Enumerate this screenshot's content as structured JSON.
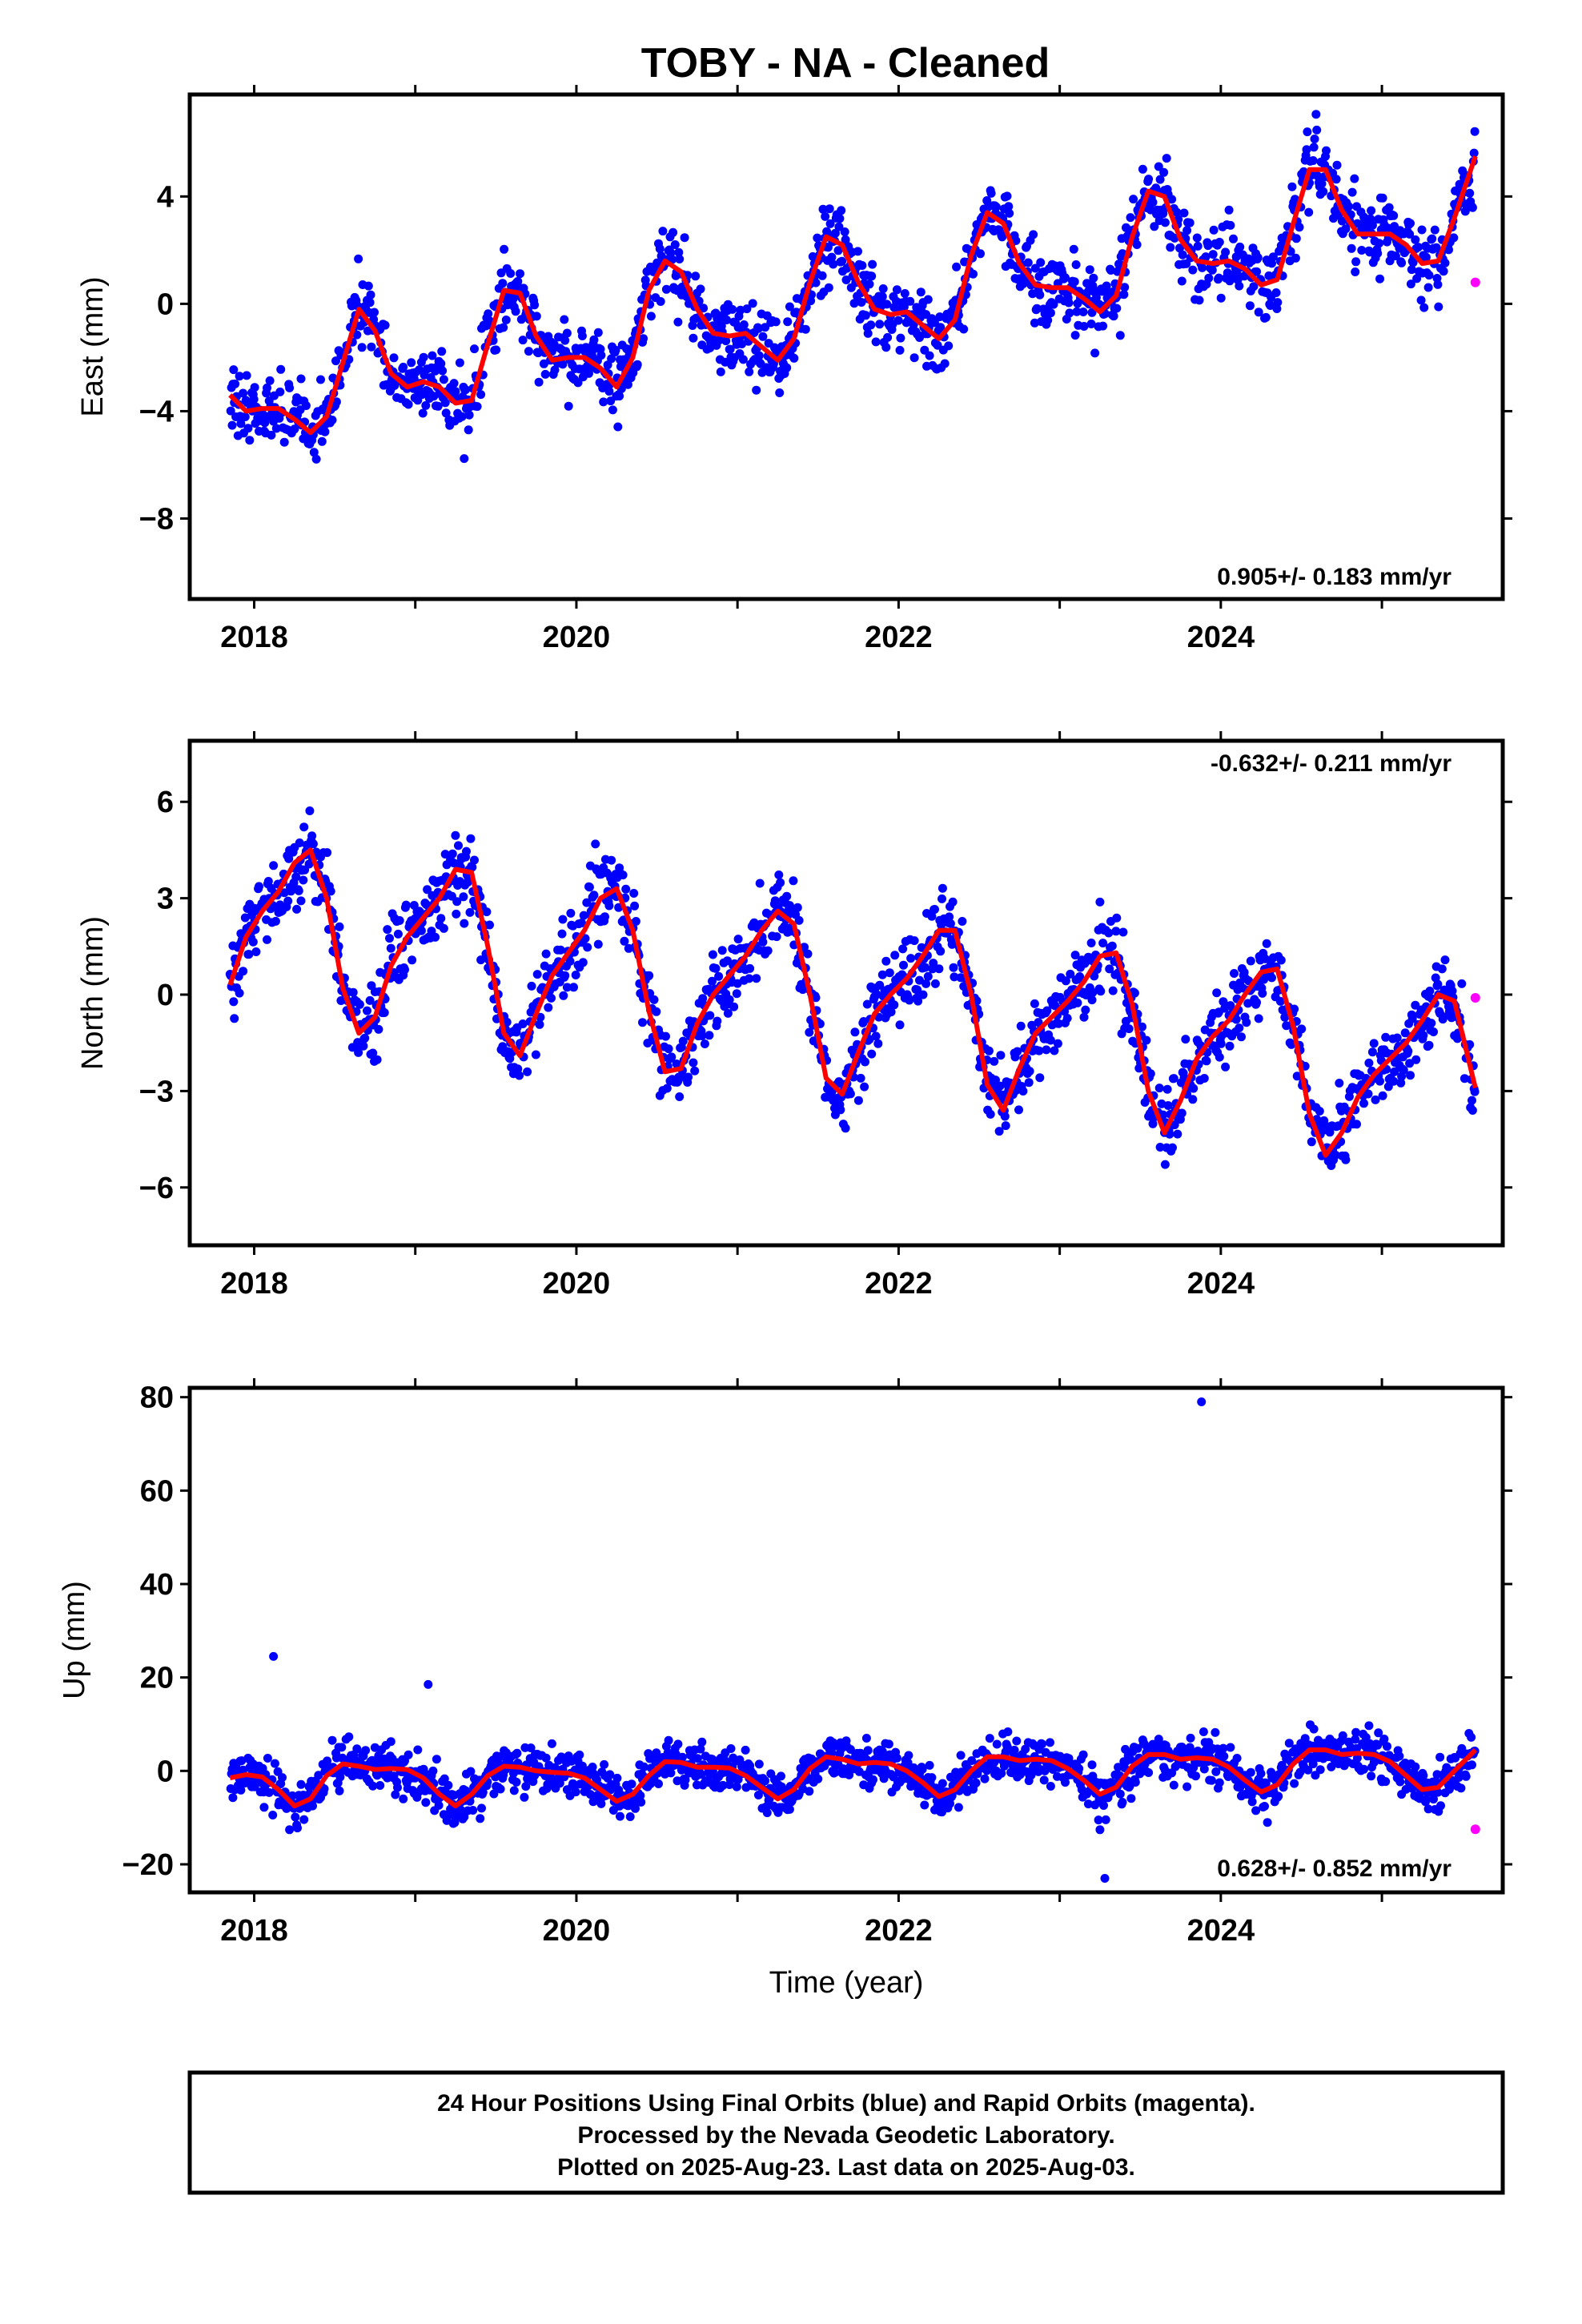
{
  "title": "TOBY  - NA - Cleaned",
  "colors": {
    "final": "#0000ff",
    "rapid": "#ff00ff",
    "model": "#ff0000"
  },
  "chart_data": [
    {
      "type": "scatter",
      "component": "east",
      "ylabel": "East (mm)",
      "xlabel": "",
      "xlim": [
        2017.6,
        2025.75
      ],
      "ylim": [
        -11,
        7.8
      ],
      "yticks": [
        -8,
        -4,
        0,
        4
      ],
      "ytick_labels": [
        "−8",
        "−4",
        "0",
        "4"
      ],
      "xticks": [
        2018,
        2020,
        2022,
        2024
      ],
      "xtick_labels": [
        "2018",
        "2020",
        "2022",
        "2024"
      ],
      "rate_label": "0.905+/- 0.183 mm/yr",
      "rate_position": "bottom-right",
      "model": {
        "x": [
          2017.85,
          2017.95,
          2018.05,
          2018.15,
          2018.25,
          2018.35,
          2018.45,
          2018.55,
          2018.65,
          2018.75,
          2018.85,
          2018.95,
          2019.05,
          2019.15,
          2019.25,
          2019.35,
          2019.45,
          2019.55,
          2019.65,
          2019.75,
          2019.85,
          2019.95,
          2020.05,
          2020.15,
          2020.25,
          2020.35,
          2020.45,
          2020.55,
          2020.65,
          2020.75,
          2020.85,
          2020.95,
          2021.05,
          2021.15,
          2021.25,
          2021.35,
          2021.45,
          2021.55,
          2021.65,
          2021.75,
          2021.85,
          2021.95,
          2022.05,
          2022.15,
          2022.25,
          2022.35,
          2022.45,
          2022.55,
          2022.65,
          2022.75,
          2022.85,
          2022.95,
          2023.05,
          2023.15,
          2023.25,
          2023.35,
          2023.45,
          2023.55,
          2023.65,
          2023.75,
          2023.85,
          2023.95,
          2024.05,
          2024.15,
          2024.25,
          2024.35,
          2024.45,
          2024.55,
          2024.65,
          2024.75,
          2024.85,
          2024.95,
          2025.05,
          2025.15,
          2025.25,
          2025.35,
          2025.45,
          2025.58
        ],
        "y": [
          -3.4,
          -4.0,
          -3.9,
          -3.9,
          -4.3,
          -4.8,
          -4.2,
          -2.2,
          -0.2,
          -1.0,
          -2.6,
          -3.1,
          -2.9,
          -3.1,
          -3.7,
          -3.6,
          -1.5,
          0.5,
          0.4,
          -1.2,
          -2.1,
          -2.0,
          -2.0,
          -2.4,
          -3.1,
          -2.0,
          0.5,
          1.6,
          1.2,
          -0.2,
          -1.1,
          -1.2,
          -1.1,
          -1.6,
          -2.1,
          -1.3,
          0.8,
          2.5,
          2.2,
          0.8,
          -0.2,
          -0.4,
          -0.3,
          -0.8,
          -1.3,
          -0.6,
          1.8,
          3.4,
          3.0,
          1.5,
          0.7,
          0.6,
          0.6,
          0.2,
          -0.3,
          0.3,
          2.5,
          4.2,
          4.0,
          2.4,
          1.6,
          1.5,
          1.6,
          1.3,
          0.7,
          0.9,
          3.0,
          5.0,
          5.0,
          3.5,
          2.6,
          2.6,
          2.6,
          2.2,
          1.5,
          1.6,
          3.2,
          5.5
        ]
      },
      "rapid": {
        "x": [
          2025.58
        ],
        "y": [
          0.8
        ]
      }
    },
    {
      "type": "scatter",
      "component": "north",
      "ylabel": "North (mm)",
      "xlabel": "",
      "xlim": [
        2017.6,
        2025.75
      ],
      "ylim": [
        -7.8,
        7.9
      ],
      "yticks": [
        -6,
        -3,
        0,
        3,
        6
      ],
      "ytick_labels": [
        "−6",
        "−3",
        "0",
        "3",
        "6"
      ],
      "xticks": [
        2018,
        2020,
        2022,
        2024
      ],
      "xtick_labels": [
        "2018",
        "2020",
        "2022",
        "2024"
      ],
      "rate_label": "-0.632+/- 0.211 mm/yr",
      "rate_position": "top-right",
      "model": {
        "x": [
          2017.85,
          2017.95,
          2018.05,
          2018.15,
          2018.25,
          2018.35,
          2018.45,
          2018.55,
          2018.65,
          2018.75,
          2018.85,
          2018.95,
          2019.05,
          2019.15,
          2019.25,
          2019.35,
          2019.45,
          2019.55,
          2019.65,
          2019.75,
          2019.85,
          2019.95,
          2020.05,
          2020.15,
          2020.25,
          2020.35,
          2020.45,
          2020.55,
          2020.65,
          2020.75,
          2020.85,
          2020.95,
          2021.05,
          2021.15,
          2021.25,
          2021.35,
          2021.45,
          2021.55,
          2021.65,
          2021.75,
          2021.85,
          2021.95,
          2022.05,
          2022.15,
          2022.25,
          2022.35,
          2022.45,
          2022.55,
          2022.65,
          2022.75,
          2022.85,
          2022.95,
          2023.05,
          2023.15,
          2023.25,
          2023.35,
          2023.45,
          2023.55,
          2023.65,
          2023.75,
          2023.85,
          2023.95,
          2024.05,
          2024.15,
          2024.25,
          2024.35,
          2024.45,
          2024.55,
          2024.65,
          2024.75,
          2024.85,
          2024.95,
          2025.05,
          2025.15,
          2025.25,
          2025.35,
          2025.45,
          2025.58
        ],
        "y": [
          0.3,
          1.8,
          2.6,
          3.2,
          4.1,
          4.5,
          3.0,
          0.2,
          -1.2,
          -0.7,
          0.9,
          1.8,
          2.4,
          3.0,
          3.9,
          3.8,
          1.5,
          -1.2,
          -1.9,
          -0.6,
          0.6,
          1.3,
          2.0,
          3.0,
          3.3,
          2.0,
          -0.5,
          -2.4,
          -2.3,
          -0.9,
          0.0,
          0.6,
          1.2,
          2.0,
          2.6,
          2.2,
          0.0,
          -2.6,
          -3.1,
          -1.8,
          -0.6,
          0.0,
          0.5,
          1.2,
          2.0,
          2.0,
          0.0,
          -2.8,
          -3.6,
          -2.3,
          -1.2,
          -0.7,
          -0.2,
          0.4,
          1.2,
          1.3,
          -0.3,
          -3.0,
          -4.3,
          -3.3,
          -2.0,
          -1.3,
          -0.8,
          0.0,
          0.7,
          0.8,
          -1.0,
          -3.7,
          -5.0,
          -4.3,
          -3.2,
          -2.5,
          -2.0,
          -1.5,
          -0.8,
          0.0,
          -0.2,
          -2.9
        ]
      },
      "rapid": {
        "x": [
          2025.58
        ],
        "y": [
          -0.1
        ]
      }
    },
    {
      "type": "scatter",
      "component": "up",
      "ylabel": "Up (mm)",
      "xlabel": "Time (year)",
      "xlim": [
        2017.6,
        2025.75
      ],
      "ylim": [
        -26,
        82
      ],
      "yticks": [
        -20,
        0,
        20,
        40,
        60,
        80
      ],
      "ytick_labels": [
        "−20",
        "0",
        "20",
        "40",
        "60",
        "80"
      ],
      "xticks": [
        2018,
        2020,
        2022,
        2024
      ],
      "xtick_labels": [
        "2018",
        "2020",
        "2022",
        "2024"
      ],
      "rate_label": "0.628+/- 0.852 mm/yr",
      "rate_position": "bottom-right",
      "model": {
        "x": [
          2017.85,
          2017.95,
          2018.05,
          2018.15,
          2018.25,
          2018.35,
          2018.45,
          2018.55,
          2018.65,
          2018.75,
          2018.85,
          2018.95,
          2019.05,
          2019.15,
          2019.25,
          2019.35,
          2019.45,
          2019.55,
          2019.65,
          2019.75,
          2019.85,
          2019.95,
          2020.05,
          2020.15,
          2020.25,
          2020.35,
          2020.45,
          2020.55,
          2020.65,
          2020.75,
          2020.85,
          2020.95,
          2021.05,
          2021.15,
          2021.25,
          2021.35,
          2021.45,
          2021.55,
          2021.65,
          2021.75,
          2021.85,
          2021.95,
          2022.05,
          2022.15,
          2022.25,
          2022.35,
          2022.45,
          2022.55,
          2022.65,
          2022.75,
          2022.85,
          2022.95,
          2023.05,
          2023.15,
          2023.25,
          2023.35,
          2023.45,
          2023.55,
          2023.65,
          2023.75,
          2023.85,
          2023.95,
          2024.05,
          2024.15,
          2024.25,
          2024.35,
          2024.45,
          2024.55,
          2024.65,
          2024.75,
          2024.85,
          2024.95,
          2025.05,
          2025.15,
          2025.25,
          2025.35,
          2025.45,
          2025.58
        ],
        "y": [
          -1.5,
          -0.8,
          -1.3,
          -4.0,
          -7.5,
          -6.0,
          -1.0,
          1.5,
          1.0,
          0.3,
          0.5,
          0.3,
          -1.5,
          -5.0,
          -7.5,
          -5.0,
          -1.0,
          1.0,
          0.8,
          0.0,
          -0.3,
          -0.5,
          -1.5,
          -4.0,
          -6.5,
          -5.0,
          -1.0,
          2.0,
          1.8,
          0.8,
          0.8,
          0.6,
          -1.0,
          -3.5,
          -6.0,
          -4.0,
          0.5,
          3.0,
          2.5,
          1.5,
          1.8,
          1.5,
          0.0,
          -2.5,
          -5.5,
          -4.0,
          0.0,
          3.0,
          3.0,
          2.2,
          2.5,
          2.2,
          0.5,
          -2.0,
          -5.0,
          -3.5,
          1.0,
          3.5,
          3.5,
          2.5,
          2.8,
          2.5,
          0.8,
          -2.0,
          -4.5,
          -3.0,
          1.5,
          4.5,
          4.5,
          3.5,
          3.8,
          3.5,
          2.0,
          -1.0,
          -4.0,
          -3.5,
          0.0,
          4.5
        ]
      },
      "rapid": {
        "x": [
          2025.58
        ],
        "y": [
          -12.5
        ]
      },
      "outliers": {
        "x": [
          2023.88,
          2018.12,
          2019.08,
          2023.28
        ],
        "y": [
          79,
          24.5,
          18.5,
          -23
        ]
      }
    }
  ],
  "footer": {
    "line1": "24 Hour Positions Using Final Orbits (blue) and Rapid Orbits (magenta).",
    "line2": "Processed by the Nevada Geodetic Laboratory.",
    "line3": "Plotted on 2025-Aug-23. Last data on 2025-Aug-03."
  }
}
